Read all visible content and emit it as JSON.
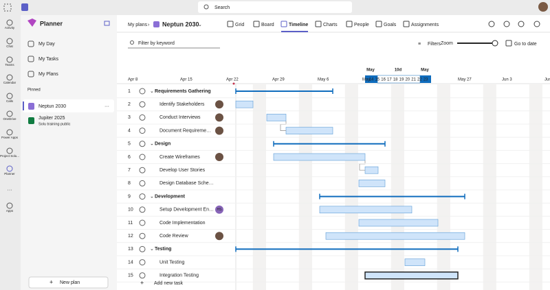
{
  "topbar": {
    "search": "Search"
  },
  "rail": [
    "Activity",
    "Chat",
    "Teams",
    "Calendar",
    "Calls",
    "OneDrive",
    "Power Apps",
    "Project Solu...",
    "Planner",
    "Apps"
  ],
  "sidebar": {
    "title": "Planner",
    "nav": [
      "My Day",
      "My Tasks",
      "My Plans"
    ],
    "pinned": "Pinned",
    "plans": [
      {
        "name": "Neptun 2030"
      },
      {
        "name": "Jupiter 2025",
        "subtitle": "Solu training public"
      }
    ],
    "new_plan": "New plan"
  },
  "header": {
    "breadcrumb": "My plans",
    "plan": "Neptun 2030",
    "tabs": [
      "Grid",
      "Board",
      "Timeline",
      "Charts",
      "People",
      "Goals",
      "Assignments"
    ]
  },
  "toolbar": {
    "filter_placeholder": "Filter by keyword",
    "filters": "Filters",
    "zoom": "Zoom",
    "go_to_date": "Go to date"
  },
  "timeline": {
    "range_labels": [
      "May",
      "10d",
      "May"
    ],
    "weeks": [
      "Apr 8",
      "Apr 15",
      "Apr 22",
      "Apr 29",
      "May 6",
      "May",
      "May 27",
      "Jun 3",
      "Jun"
    ],
    "days": [
      14,
      15,
      16,
      17,
      18,
      19,
      20,
      21,
      22,
      23
    ]
  },
  "tasks": [
    {
      "number": 1,
      "name": "Requirements Gathering"
    },
    {
      "number": 2,
      "name": "Identify Stakeholders"
    },
    {
      "number": 3,
      "name": "Conduct Interviews"
    },
    {
      "number": 4,
      "name": "Document Requireme…"
    },
    {
      "number": 5,
      "name": "Design"
    },
    {
      "number": 6,
      "name": "Create Wireframes"
    },
    {
      "number": 7,
      "name": "Develop User Stories"
    },
    {
      "number": 8,
      "name": "Design Database Sche…"
    },
    {
      "number": 9,
      "name": "Development"
    },
    {
      "number": 10,
      "name": "Setup Development En…",
      "assignee": "HS"
    },
    {
      "number": 11,
      "name": "Code Implementation"
    },
    {
      "number": 12,
      "name": "Code Review"
    },
    {
      "number": 13,
      "name": "Testing"
    },
    {
      "number": 14,
      "name": "Unit Testing"
    },
    {
      "number": 15,
      "name": "Integration Testing"
    }
  ],
  "add_task": "Add new task"
}
